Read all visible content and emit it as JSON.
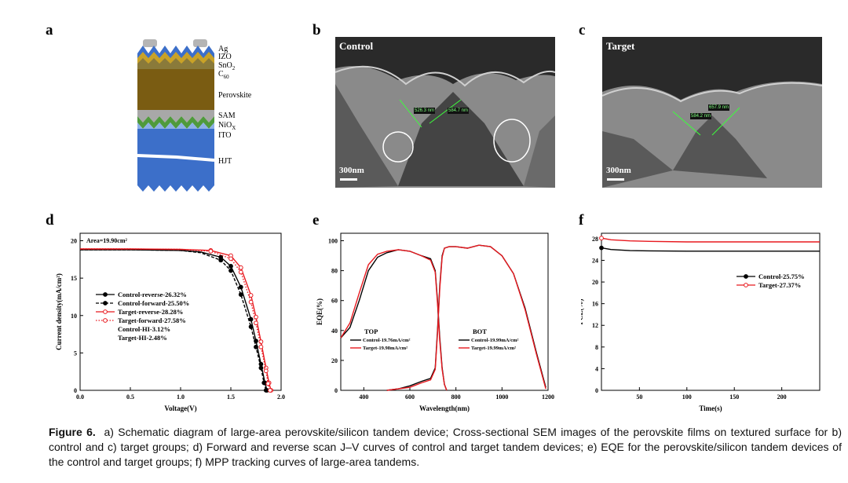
{
  "panel_letters": {
    "a": "a",
    "b": "b",
    "c": "c",
    "d": "d",
    "e": "e",
    "f": "f"
  },
  "panel_a": {
    "layers": {
      "ag": "Ag",
      "izo": "IZO",
      "sno2_base": "SnO",
      "sno2_sub": "2",
      "c60_base": "C",
      "c60_sub": "60",
      "perovskite": "Perovskite",
      "sam": "SAM",
      "niox_base": "NiO",
      "niox_sub": "X",
      "ito": "ITO",
      "hjt": "HJT"
    }
  },
  "panel_b": {
    "title": "Control",
    "scale": "300nm",
    "m1": "526.3 nm",
    "m2": "584.7 nm"
  },
  "panel_c": {
    "title": "Target",
    "scale": "300nm",
    "m1": "657.9 nm",
    "m2": "584.2 nm"
  },
  "caption": {
    "label": "Figure 6.",
    "text": "a) Schematic diagram of large-area perovskite/silicon tandem device; Cross-sectional SEM images of the perovskite films on textured surface for b) control and c) target groups; d) Forward and reverse scan J–V curves of control and target tandem devices; e) EQE for the perovskite/silicon tandem devices of the control and target groups; f) MPP tracking curves of large-area tandems."
  },
  "colors": {
    "control": "#000000",
    "target": "#e8191f"
  },
  "chart_data": [
    {
      "id": "d",
      "type": "line",
      "xlabel": "Voltage(V)",
      "ylabel": "Current density(mA/cm²)",
      "xlim": [
        0.0,
        2.0
      ],
      "ylim": [
        0,
        21
      ],
      "xticks": [
        "0.0",
        "0.5",
        "1.0",
        "1.5",
        "2.0"
      ],
      "yticks": [
        "0",
        "5",
        "10",
        "15",
        "20"
      ],
      "annotation": "Area=19.90cm²",
      "legend": [
        {
          "label": "Control-reverse-26.32%",
          "color": "#000000",
          "style": "solid",
          "marker": "filled"
        },
        {
          "label": "Control-forward-25.50%",
          "color": "#000000",
          "style": "dashed",
          "marker": "filled"
        },
        {
          "label": "Target-reverse-28.28%",
          "color": "#e8191f",
          "style": "solid",
          "marker": "open"
        },
        {
          "label": "Target-forward-27.58%",
          "color": "#e8191f",
          "style": "dotted",
          "marker": "open"
        }
      ],
      "notes": [
        "Control-HI-3.12%",
        "Target-HI-2.48%"
      ],
      "series": [
        {
          "name": "Control-reverse",
          "x": [
            0.0,
            0.5,
            1.0,
            1.2,
            1.4,
            1.5,
            1.6,
            1.7,
            1.75,
            1.8,
            1.84,
            1.86
          ],
          "y": [
            18.8,
            18.8,
            18.7,
            18.5,
            17.8,
            16.6,
            13.8,
            9.5,
            6.6,
            3.5,
            1.0,
            0.0
          ]
        },
        {
          "name": "Control-forward",
          "x": [
            0.0,
            0.5,
            1.0,
            1.2,
            1.4,
            1.5,
            1.6,
            1.7,
            1.75,
            1.8,
            1.83,
            1.85
          ],
          "y": [
            18.8,
            18.8,
            18.7,
            18.4,
            17.4,
            16.0,
            12.8,
            8.5,
            5.8,
            3.0,
            1.0,
            0.0
          ]
        },
        {
          "name": "Target-reverse",
          "x": [
            0.0,
            0.5,
            1.0,
            1.3,
            1.5,
            1.6,
            1.7,
            1.75,
            1.8,
            1.85,
            1.88,
            1.9
          ],
          "y": [
            18.9,
            18.9,
            18.85,
            18.7,
            18.0,
            16.4,
            12.7,
            9.8,
            6.5,
            3.0,
            1.0,
            0.0
          ]
        },
        {
          "name": "Target-forward",
          "x": [
            0.0,
            0.5,
            1.0,
            1.3,
            1.5,
            1.6,
            1.7,
            1.75,
            1.8,
            1.85,
            1.87,
            1.89
          ],
          "y": [
            18.9,
            18.9,
            18.85,
            18.6,
            17.6,
            15.8,
            11.8,
            9.0,
            5.8,
            2.6,
            0.9,
            0.0
          ]
        }
      ]
    },
    {
      "id": "e",
      "type": "line",
      "xlabel": "Wavelength(nm)",
      "ylabel": "EQE(%)",
      "xlim": [
        300,
        1200
      ],
      "ylim": [
        0,
        105
      ],
      "xticks": [
        "400",
        "600",
        "800",
        "1000",
        "1200"
      ],
      "yticks": [
        "0",
        "20",
        "40",
        "60",
        "80",
        "100"
      ],
      "groups": [
        {
          "title": "TOP",
          "entries": [
            {
              "label": "Control-19.76mA/cm²",
              "color": "#000000"
            },
            {
              "label": "Target-19.98mA/cm²",
              "color": "#e8191f"
            }
          ]
        },
        {
          "title": "BOT",
          "entries": [
            {
              "label": "Control-19.99mA/cm²",
              "color": "#000000"
            },
            {
              "label": "Target-19.99mA/cm²",
              "color": "#e8191f"
            }
          ]
        }
      ],
      "series": [
        {
          "name": "TOP-Control",
          "x": [
            300,
            340,
            380,
            420,
            460,
            500,
            550,
            600,
            650,
            690,
            710,
            720,
            730,
            740,
            750,
            760
          ],
          "y": [
            35,
            42,
            60,
            80,
            89,
            92,
            94,
            93,
            90,
            88,
            80,
            60,
            35,
            15,
            4,
            0
          ]
        },
        {
          "name": "TOP-Target",
          "x": [
            300,
            340,
            380,
            420,
            460,
            500,
            550,
            600,
            650,
            690,
            710,
            720,
            730,
            740,
            750,
            760
          ],
          "y": [
            35,
            45,
            65,
            84,
            91,
            93,
            94,
            93,
            90,
            87,
            79,
            58,
            33,
            14,
            4,
            0
          ]
        },
        {
          "name": "BOT-Control",
          "x": [
            500,
            550,
            600,
            650,
            690,
            710,
            720,
            730,
            740,
            750,
            770,
            800,
            850,
            900,
            950,
            1000,
            1050,
            1100,
            1150,
            1190
          ],
          "y": [
            0,
            1,
            3,
            6,
            8,
            15,
            40,
            70,
            90,
            95,
            96,
            96,
            95,
            97,
            96,
            90,
            78,
            55,
            25,
            2
          ]
        },
        {
          "name": "BOT-Target",
          "x": [
            500,
            550,
            600,
            650,
            690,
            710,
            720,
            730,
            740,
            750,
            770,
            800,
            850,
            900,
            950,
            1000,
            1050,
            1100,
            1150,
            1190
          ],
          "y": [
            0,
            1,
            2,
            5,
            7,
            14,
            38,
            68,
            89,
            95,
            96,
            96,
            95,
            97,
            96,
            90,
            78,
            54,
            24,
            1
          ]
        }
      ]
    },
    {
      "id": "f",
      "type": "line",
      "xlabel": "Time(s)",
      "ylabel": "PCE(%)",
      "xlim": [
        10,
        240
      ],
      "ylim": [
        0,
        29
      ],
      "xticks": [
        "50",
        "100",
        "150",
        "200"
      ],
      "yticks": [
        "0",
        "4",
        "8",
        "12",
        "16",
        "20",
        "24",
        "28"
      ],
      "legend": [
        {
          "label": "Control-25.75%",
          "color": "#000000"
        },
        {
          "label": "Target-27.37%",
          "color": "#e8191f"
        }
      ],
      "series": [
        {
          "name": "Control",
          "x": [
            10,
            20,
            40,
            60,
            100,
            150,
            200,
            240
          ],
          "y": [
            26.3,
            26.0,
            25.8,
            25.75,
            25.7,
            25.7,
            25.7,
            25.7
          ]
        },
        {
          "name": "Target",
          "x": [
            10,
            20,
            40,
            60,
            100,
            150,
            200,
            240
          ],
          "y": [
            28.1,
            27.8,
            27.6,
            27.5,
            27.4,
            27.4,
            27.4,
            27.4
          ]
        }
      ]
    }
  ]
}
